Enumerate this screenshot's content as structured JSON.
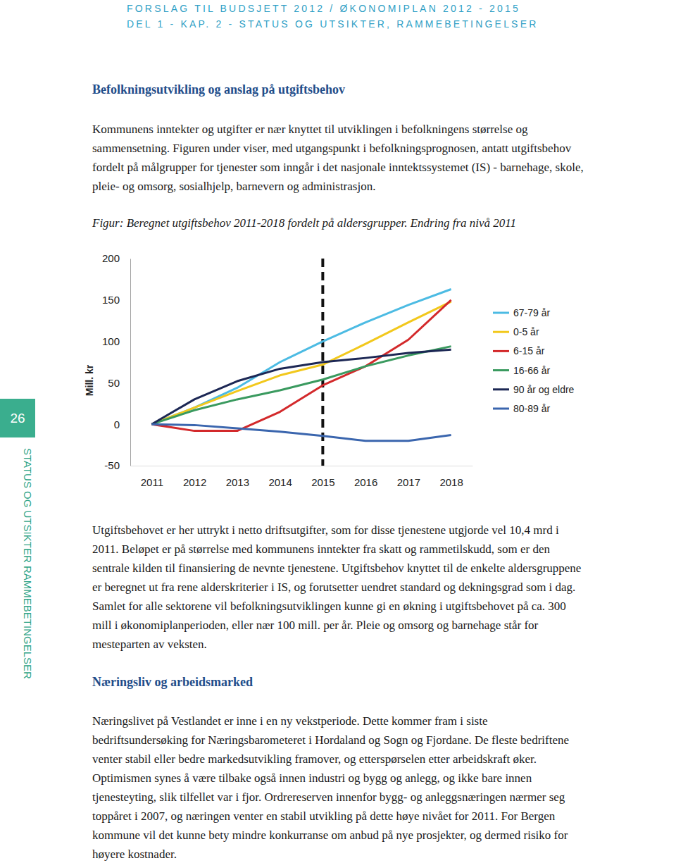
{
  "header": {
    "lines": [
      "FORSLAG TIL BUDSJETT 2012 / ØKONOMIPLAN 2012 - 2015",
      "DEL 1 - KAP. 2 - STATUS OG UTSIKTER, RAMMEBETINGELSER"
    ]
  },
  "page_number": 26,
  "side_label": "STATUS OG UTSIKTER RAMMEBETINGELSER",
  "sections": [
    {
      "heading": "Befolkningsutvikling og anslag på utgiftsbehov",
      "paragraphs": [
        [
          "Kommunens inntekter og utgifter er nær knyttet til utviklingen i befolkningens størrelse og",
          "sammensetning. Figuren under viser, med utgangspunkt i befolkningsprognosen, antatt utgiftsbehov",
          "fordelt på målgrupper for tjenester som inngår i det nasjonale inntektssystemet (IS) - barnehage, skole,",
          "pleie- og omsorg, sosialhjelp, barnevern og administrasjon."
        ],
        [
          "Utgiftsbehovet er her uttrykt i netto driftsutgifter, som for disse tjenestene utgjorde vel 10,4 mrd i",
          "2011. Beløpet er på størrelse med kommunens inntekter fra skatt og rammetilskudd, som er den",
          "sentrale kilden til finansiering de nevnte tjenestene. Utgiftsbehov knyttet til de enkelte aldersgruppene",
          "er beregnet ut fra rene alderskriterier i IS, og forutsetter uendret standard og dekningsgrad som i dag.",
          "Samlet for alle sektorene vil befolkningsutviklingen kunne gi en økning i utgiftsbehovet på ca. 300",
          "mill i økonomiplanperioden, eller nær 100 mill. per år. Pleie og omsorg og barnehage står for",
          "mesteparten av veksten."
        ]
      ]
    },
    {
      "heading": "Næringsliv og arbeidsmarked",
      "paragraphs": [
        [
          "Næringslivet på Vestlandet er inne i en ny vekstperiode. Dette kommer fram i siste",
          "bedriftsundersøking for Næringsbarometeret i Hordaland og Sogn og Fjordane. De fleste bedriftene",
          "venter stabil eller bedre markedsutvikling framover, og etterspørselen etter arbeidskraft øker.",
          "Optimismen synes å være tilbake også innen industri og bygg og anlegg, og ikke bare innen",
          "tjenesteyting, slik tilfellet var i fjor. Ordrereserven innenfor bygg- og anleggsnæringen nærmer seg",
          "toppåret i 2007, og næringen venter en stabil utvikling på dette høye nivået for 2011. For Bergen",
          "kommune vil det kunne bety mindre konkurranse om anbud på nye prosjekter, og dermed risiko for",
          "høyere kostnader."
        ]
      ]
    }
  ],
  "chart_data": {
    "type": "line",
    "title": "Figur: Beregnet utgiftsbehov 2011-2018 fordelt på aldersgrupper. Endring fra nivå 2011",
    "y_label": "Mill. kr",
    "categories": [
      "2011",
      "2012",
      "2013",
      "2014",
      "2015",
      "2016",
      "2017",
      "2018"
    ],
    "series": [
      {
        "name": "67-79 år",
        "color": "#4cbbe3",
        "values": [
          0,
          20,
          44,
          75,
          100,
          123,
          144,
          163
        ]
      },
      {
        "name": "0-5 år",
        "color": "#f2c81c",
        "values": [
          0,
          20,
          40,
          59,
          72,
          97,
          123,
          148
        ]
      },
      {
        "name": "6-15 år",
        "color": "#d3292b",
        "values": [
          0,
          -8,
          -8,
          15,
          47,
          70,
          102,
          150
        ]
      },
      {
        "name": "16-66 år",
        "color": "#3a9a5f",
        "values": [
          0,
          17,
          30,
          41,
          54,
          70,
          83,
          94
        ]
      },
      {
        "name": "90 år og eldre",
        "color": "#1c2754",
        "values": [
          0,
          30,
          52,
          67,
          75,
          80,
          86,
          90
        ]
      },
      {
        "name": "80-89 år",
        "color": "#3b66ae",
        "values": [
          0,
          -1,
          -5,
          -9,
          -14,
          -20,
          -20,
          -13
        ]
      }
    ],
    "ylim": [
      -50,
      200
    ],
    "yticks": [
      -50,
      0,
      50,
      100,
      150,
      200
    ],
    "grid": false,
    "legend": "right",
    "annotations": [
      {
        "category": "2015",
        "line_style": "dashed"
      }
    ]
  }
}
